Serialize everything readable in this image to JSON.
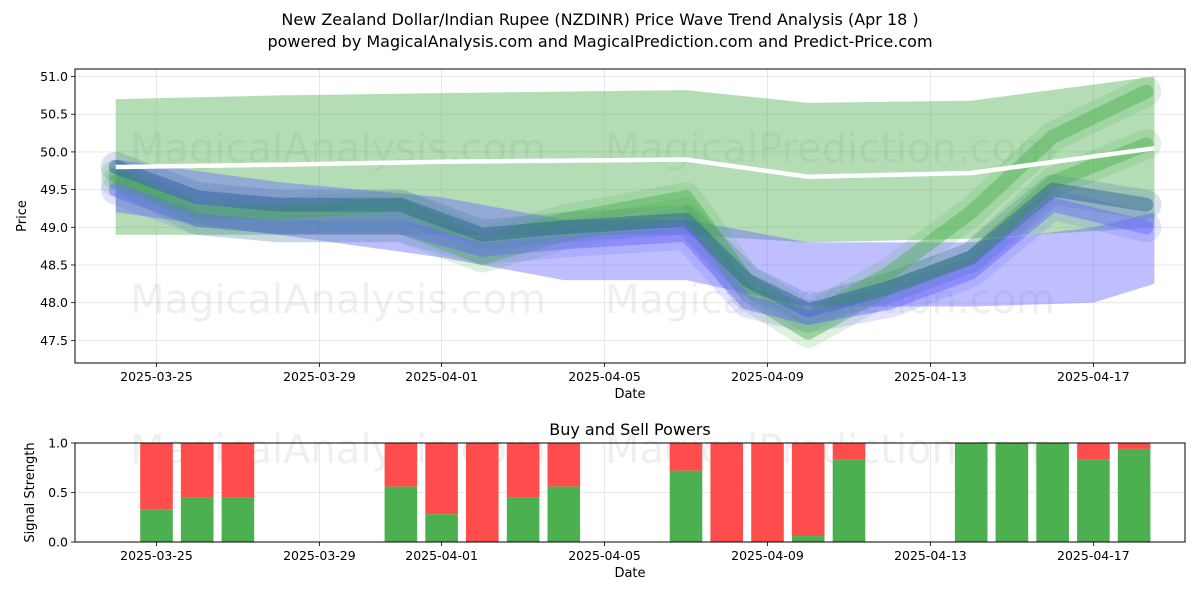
{
  "title": "New Zealand Dollar/Indian Rupee (NZDINR) Price Wave Trend Analysis (Apr 18 )",
  "subtitle": "powered by MagicalAnalysis.com and MagicalPrediction.com and Predict-Price.com",
  "watermarks": [
    "MagicalAnalysis.com",
    "MagicalPrediction.com"
  ],
  "colors": {
    "green": "#4caf50",
    "red": "#ff4d4d",
    "blue": "#6666ff",
    "darkblue": "#2a5aa0",
    "white": "#ffffff"
  },
  "chart_data": [
    {
      "type": "area",
      "xlabel": "Date",
      "ylabel": "Price",
      "xlim": [
        "2025-03-23",
        "2025-04-19.25"
      ],
      "ylim": [
        47.2,
        51.1
      ],
      "x_ticks": [
        "2025-03-25",
        "2025-03-29",
        "2025-04-01",
        "2025-04-05",
        "2025-04-09",
        "2025-04-13",
        "2025-04-17"
      ],
      "y_ticks": [
        "47.5",
        "48.0",
        "48.5",
        "49.0",
        "49.5",
        "50.0",
        "50.5",
        "51.0"
      ],
      "grid": true,
      "bands": [
        {
          "color": "green",
          "x": [
            "2025-03-24",
            "2025-03-28",
            "2025-04-01",
            "2025-04-07",
            "2025-04-10",
            "2025-04-14",
            "2025-04-18.5"
          ],
          "upper": [
            50.7,
            50.75,
            50.78,
            50.82,
            50.65,
            50.68,
            51.0
          ],
          "lower": [
            48.9,
            48.9,
            48.9,
            48.9,
            48.8,
            48.85,
            49.0
          ]
        },
        {
          "color": "blue",
          "x": [
            "2025-03-24",
            "2025-03-28",
            "2025-04-01",
            "2025-04-04",
            "2025-04-07",
            "2025-04-10",
            "2025-04-14",
            "2025-04-17",
            "2025-04-18.5"
          ],
          "upper": [
            49.9,
            49.6,
            49.4,
            49.1,
            49.1,
            48.8,
            48.8,
            49.0,
            49.2
          ],
          "lower": [
            49.2,
            48.9,
            48.6,
            48.3,
            48.3,
            47.95,
            47.95,
            48.0,
            48.25
          ]
        }
      ],
      "white_line": {
        "x": [
          "2025-03-24",
          "2025-03-28",
          "2025-04-01",
          "2025-04-07",
          "2025-04-10",
          "2025-04-14",
          "2025-04-18.5"
        ],
        "y": [
          49.8,
          49.83,
          49.87,
          49.9,
          49.67,
          49.72,
          50.05
        ]
      },
      "wave_lines": [
        {
          "color": "green",
          "x": [
            "2025-03-24",
            "2025-03-26",
            "2025-03-28",
            "2025-03-31",
            "2025-04-02",
            "2025-04-04",
            "2025-04-07",
            "2025-04-08.5",
            "2025-04-10",
            "2025-04-12",
            "2025-04-14",
            "2025-04-16",
            "2025-04-18.3"
          ],
          "y": [
            49.7,
            49.1,
            49.0,
            49.0,
            48.6,
            48.9,
            49.2,
            48.1,
            47.6,
            48.2,
            48.6,
            49.6,
            50.1
          ]
        },
        {
          "color": "green",
          "x": [
            "2025-03-24",
            "2025-03-26",
            "2025-03-28",
            "2025-03-31",
            "2025-04-02",
            "2025-04-04",
            "2025-04-07",
            "2025-04-08.5",
            "2025-04-10",
            "2025-04-12",
            "2025-04-14",
            "2025-04-16",
            "2025-04-18.3"
          ],
          "y": [
            49.6,
            49.2,
            49.2,
            49.3,
            48.8,
            49.1,
            49.4,
            48.3,
            47.8,
            48.4,
            49.2,
            50.2,
            50.8
          ]
        },
        {
          "color": "darkblue",
          "x": [
            "2025-03-24",
            "2025-03-26",
            "2025-03-28",
            "2025-03-31",
            "2025-04-02",
            "2025-04-04",
            "2025-04-07",
            "2025-04-08.5",
            "2025-04-10",
            "2025-04-12",
            "2025-04-14",
            "2025-04-16",
            "2025-04-18.3"
          ],
          "y": [
            49.8,
            49.4,
            49.3,
            49.3,
            48.9,
            49.0,
            49.1,
            48.3,
            47.9,
            48.2,
            48.6,
            49.5,
            49.3
          ]
        },
        {
          "color": "blue",
          "x": [
            "2025-03-24",
            "2025-03-26",
            "2025-03-28",
            "2025-03-31",
            "2025-04-02",
            "2025-04-04",
            "2025-04-07",
            "2025-04-08.5",
            "2025-04-10",
            "2025-04-12",
            "2025-04-14",
            "2025-04-16",
            "2025-04-18.3"
          ],
          "y": [
            49.5,
            49.1,
            49.0,
            49.0,
            48.7,
            48.8,
            48.9,
            48.0,
            47.8,
            48.0,
            48.4,
            49.3,
            49.0
          ]
        }
      ]
    },
    {
      "type": "bar",
      "title": "Buy and Sell Powers",
      "xlabel": "Date",
      "ylabel": "Signal Strength",
      "xlim": [
        "2025-03-23",
        "2025-04-19.25"
      ],
      "ylim": [
        0,
        1
      ],
      "x_ticks": [
        "2025-03-25",
        "2025-03-29",
        "2025-04-01",
        "2025-04-05",
        "2025-04-09",
        "2025-04-13",
        "2025-04-17"
      ],
      "y_ticks": [
        "0.0",
        "0.5",
        "1.0"
      ],
      "series": [
        {
          "name": "Buy",
          "color": "green"
        },
        {
          "name": "Sell",
          "color": "red"
        }
      ],
      "categories": [
        "2025-03-25",
        "2025-03-26",
        "2025-03-27",
        "2025-03-31",
        "2025-04-01",
        "2025-04-02",
        "2025-04-03",
        "2025-04-04",
        "2025-04-07",
        "2025-04-08",
        "2025-04-09",
        "2025-04-10",
        "2025-04-11",
        "2025-04-14",
        "2025-04-15",
        "2025-04-16",
        "2025-04-17",
        "2025-04-18"
      ],
      "buy": [
        0.33,
        0.45,
        0.45,
        0.56,
        0.28,
        0.0,
        0.45,
        0.56,
        0.72,
        0.0,
        0.0,
        0.06,
        0.83,
        1.0,
        1.0,
        1.0,
        0.83,
        0.94
      ]
    }
  ]
}
